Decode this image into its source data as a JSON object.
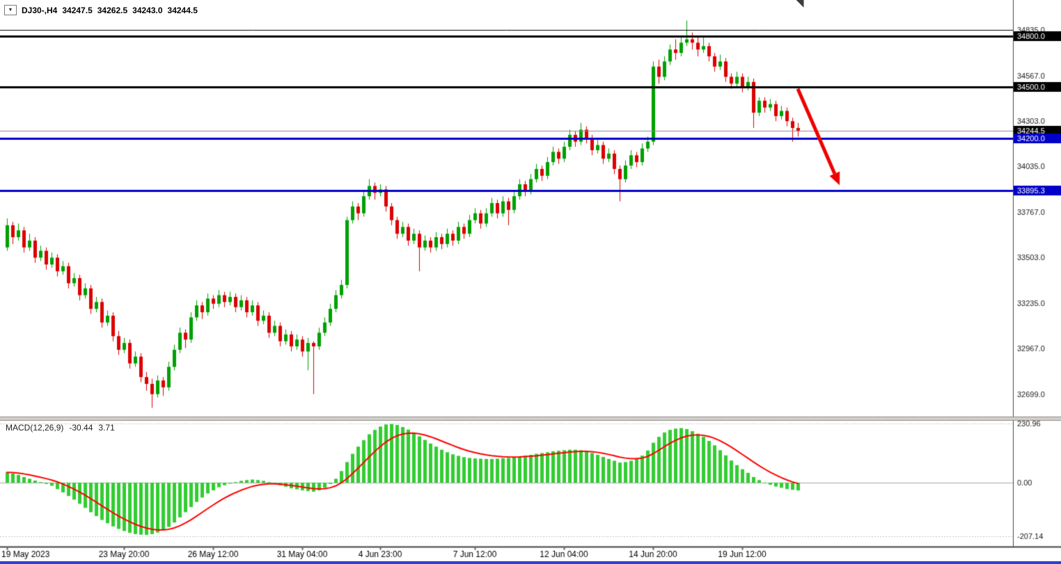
{
  "header": {
    "symbol_period": "DJ30-,H4",
    "open": "34247.5",
    "high": "34262.5",
    "low": "34243.0",
    "close": "34244.5"
  },
  "icons": {
    "symbol_dropdown_icon": "▼",
    "autoscroll_corner_icon": "◥"
  },
  "colors": {
    "bull": "#00A000",
    "bear": "#DC0000",
    "macd_hist": "#32CD32",
    "macd_signal": "#FF0000",
    "level_blue": "#0000C8",
    "level_black": "#000000",
    "current_line": "#8C8C8C",
    "axis_text": "#1A1A1A",
    "axis_border": "#444444",
    "separator": "#D4D0C8",
    "arrow": "#EE0000",
    "window_bottom": "#2B43CF",
    "badge_text": "#FFFFFF"
  },
  "chart_data": {
    "type": "candlestick",
    "symbol": "DJ30-",
    "timeframe": "H4",
    "title": "DJ30-,H4",
    "price_axis_range": [
      32607,
      35010
    ],
    "candles": [
      [
        33560,
        33730,
        33540,
        33690
      ],
      [
        33690,
        33710,
        33580,
        33620
      ],
      [
        33620,
        33700,
        33600,
        33660
      ],
      [
        33660,
        33680,
        33530,
        33560
      ],
      [
        33560,
        33640,
        33540,
        33600
      ],
      [
        33600,
        33620,
        33470,
        33500
      ],
      [
        33500,
        33570,
        33480,
        33540
      ],
      [
        33540,
        33560,
        33430,
        33460
      ],
      [
        33460,
        33530,
        33440,
        33500
      ],
      [
        33500,
        33520,
        33390,
        33420
      ],
      [
        33420,
        33480,
        33400,
        33450
      ],
      [
        33450,
        33470,
        33320,
        33350
      ],
      [
        33350,
        33410,
        33330,
        33380
      ],
      [
        33380,
        33400,
        33250,
        33280
      ],
      [
        33280,
        33350,
        33260,
        33320
      ],
      [
        33320,
        33340,
        33170,
        33200
      ],
      [
        33200,
        33270,
        33180,
        33240
      ],
      [
        33240,
        33260,
        33090,
        33120
      ],
      [
        33120,
        33190,
        33100,
        33160
      ],
      [
        33160,
        33180,
        33010,
        33040
      ],
      [
        33040,
        33070,
        32930,
        32960
      ],
      [
        32960,
        33030,
        32940,
        33000
      ],
      [
        33000,
        33020,
        32850,
        32880
      ],
      [
        32880,
        32950,
        32860,
        32920
      ],
      [
        32920,
        32940,
        32770,
        32800
      ],
      [
        32800,
        32830,
        32720,
        32760
      ],
      [
        32760,
        32790,
        32620,
        32700
      ],
      [
        32700,
        32810,
        32680,
        32780
      ],
      [
        32780,
        32800,
        32690,
        32740
      ],
      [
        32740,
        32890,
        32720,
        32860
      ],
      [
        32860,
        32990,
        32840,
        32960
      ],
      [
        32960,
        33090,
        32940,
        33060
      ],
      [
        33060,
        33080,
        32970,
        33020
      ],
      [
        33020,
        33180,
        33000,
        33150
      ],
      [
        33150,
        33250,
        33130,
        33220
      ],
      [
        33220,
        33240,
        33140,
        33180
      ],
      [
        33180,
        33290,
        33160,
        33260
      ],
      [
        33260,
        33280,
        33200,
        33230
      ],
      [
        33230,
        33310,
        33210,
        33280
      ],
      [
        33280,
        33300,
        33210,
        33240
      ],
      [
        33240,
        33300,
        33220,
        33270
      ],
      [
        33270,
        33290,
        33180,
        33210
      ],
      [
        33210,
        33280,
        33190,
        33250
      ],
      [
        33250,
        33270,
        33150,
        33180
      ],
      [
        33180,
        33250,
        33160,
        33220
      ],
      [
        33220,
        33240,
        33100,
        33130
      ],
      [
        33130,
        33190,
        33110,
        33160
      ],
      [
        33160,
        33180,
        33030,
        33060
      ],
      [
        33060,
        33130,
        33040,
        33100
      ],
      [
        33100,
        33120,
        32980,
        33010
      ],
      [
        33010,
        33080,
        32990,
        33050
      ],
      [
        33050,
        33070,
        32950,
        32980
      ],
      [
        32980,
        33050,
        32960,
        33020
      ],
      [
        33020,
        33040,
        32920,
        32950
      ],
      [
        32950,
        33030,
        32840,
        33000
      ],
      [
        33000,
        33010,
        32700,
        32980
      ],
      [
        32980,
        33090,
        32960,
        33060
      ],
      [
        33060,
        33150,
        33040,
        33120
      ],
      [
        33120,
        33230,
        33100,
        33200
      ],
      [
        33200,
        33310,
        33180,
        33280
      ],
      [
        33280,
        33370,
        33260,
        33340
      ],
      [
        33340,
        33740,
        33320,
        33720
      ],
      [
        33720,
        33830,
        33700,
        33800
      ],
      [
        33800,
        33820,
        33720,
        33760
      ],
      [
        33760,
        33890,
        33740,
        33860
      ],
      [
        33860,
        33960,
        33840,
        33920
      ],
      [
        33920,
        33940,
        33840,
        33880
      ],
      [
        33880,
        33930,
        33860,
        33900
      ],
      [
        33900,
        33920,
        33770,
        33800
      ],
      [
        33800,
        33820,
        33690,
        33720
      ],
      [
        33720,
        33740,
        33610,
        33640
      ],
      [
        33640,
        33710,
        33620,
        33680
      ],
      [
        33680,
        33700,
        33570,
        33600
      ],
      [
        33600,
        33670,
        33580,
        33640
      ],
      [
        33640,
        33660,
        33420,
        33560
      ],
      [
        33560,
        33630,
        33540,
        33600
      ],
      [
        33600,
        33620,
        33530,
        33560
      ],
      [
        33560,
        33650,
        33540,
        33620
      ],
      [
        33620,
        33640,
        33550,
        33580
      ],
      [
        33580,
        33670,
        33560,
        33640
      ],
      [
        33640,
        33660,
        33570,
        33600
      ],
      [
        33600,
        33710,
        33580,
        33680
      ],
      [
        33680,
        33700,
        33610,
        33640
      ],
      [
        33640,
        33750,
        33620,
        33720
      ],
      [
        33720,
        33790,
        33700,
        33760
      ],
      [
        33760,
        33780,
        33670,
        33700
      ],
      [
        33700,
        33790,
        33680,
        33760
      ],
      [
        33760,
        33850,
        33740,
        33820
      ],
      [
        33820,
        33840,
        33730,
        33760
      ],
      [
        33760,
        33860,
        33740,
        33830
      ],
      [
        33830,
        33850,
        33690,
        33780
      ],
      [
        33780,
        33890,
        33760,
        33860
      ],
      [
        33860,
        33960,
        33840,
        33930
      ],
      [
        33930,
        33950,
        33860,
        33890
      ],
      [
        33890,
        33990,
        33870,
        33960
      ],
      [
        33960,
        34050,
        33940,
        34020
      ],
      [
        34020,
        34040,
        33950,
        33980
      ],
      [
        33980,
        34090,
        33960,
        34060
      ],
      [
        34060,
        34150,
        34040,
        34120
      ],
      [
        34120,
        34140,
        34050,
        34080
      ],
      [
        34080,
        34180,
        34060,
        34150
      ],
      [
        34150,
        34250,
        34130,
        34220
      ],
      [
        34220,
        34240,
        34150,
        34180
      ],
      [
        34180,
        34290,
        34160,
        34250
      ],
      [
        34250,
        34270,
        34170,
        34200
      ],
      [
        34200,
        34220,
        34100,
        34130
      ],
      [
        34130,
        34190,
        34110,
        34160
      ],
      [
        34160,
        34180,
        34050,
        34080
      ],
      [
        34080,
        34140,
        34060,
        34110
      ],
      [
        34110,
        34130,
        33990,
        34020
      ],
      [
        34020,
        34040,
        33830,
        33960
      ],
      [
        33960,
        34070,
        33940,
        34040
      ],
      [
        34040,
        34130,
        34020,
        34100
      ],
      [
        34100,
        34120,
        34030,
        34060
      ],
      [
        34060,
        34170,
        34040,
        34140
      ],
      [
        34140,
        34210,
        34120,
        34180
      ],
      [
        34180,
        34650,
        34160,
        34620
      ],
      [
        34620,
        34660,
        34520,
        34560
      ],
      [
        34560,
        34680,
        34540,
        34650
      ],
      [
        34650,
        34750,
        34630,
        34720
      ],
      [
        34720,
        34780,
        34660,
        34700
      ],
      [
        34700,
        34800,
        34680,
        34760
      ],
      [
        34760,
        34890,
        34740,
        34780
      ],
      [
        34780,
        34820,
        34720,
        34760
      ],
      [
        34760,
        34800,
        34680,
        34720
      ],
      [
        34720,
        34790,
        34700,
        34740
      ],
      [
        34740,
        34760,
        34650,
        34680
      ],
      [
        34680,
        34700,
        34590,
        34620
      ],
      [
        34620,
        34690,
        34600,
        34650
      ],
      [
        34650,
        34670,
        34530,
        34560
      ],
      [
        34560,
        34580,
        34490,
        34520
      ],
      [
        34520,
        34590,
        34500,
        34560
      ],
      [
        34560,
        34580,
        34470,
        34500
      ],
      [
        34500,
        34560,
        34480,
        34530
      ],
      [
        34530,
        34550,
        34260,
        34350
      ],
      [
        34350,
        34440,
        34330,
        34420
      ],
      [
        34420,
        34440,
        34350,
        34380
      ],
      [
        34380,
        34430,
        34360,
        34400
      ],
      [
        34400,
        34420,
        34300,
        34330
      ],
      [
        34330,
        34390,
        34310,
        34360
      ],
      [
        34360,
        34380,
        34270,
        34300
      ],
      [
        34300,
        34320,
        34180,
        34260
      ],
      [
        34260,
        34290,
        34210,
        34244.5
      ]
    ],
    "price_ticks": [
      {
        "v": 34835.0,
        "label": "34835.0"
      },
      {
        "v": 34567.0,
        "label": "34567.0"
      },
      {
        "v": 34303.0,
        "label": "34303.0"
      },
      {
        "v": 34035.0,
        "label": "34035.0"
      },
      {
        "v": 33767.0,
        "label": "33767.0"
      },
      {
        "v": 33503.0,
        "label": "33503.0"
      },
      {
        "v": 33235.0,
        "label": "33235.0"
      },
      {
        "v": 32967.0,
        "label": "32967.0"
      },
      {
        "v": 32699.0,
        "label": "32699.0"
      }
    ],
    "hlines": [
      {
        "price": 34835.0,
        "label": "34835.0",
        "color": "#000000",
        "width": 1,
        "badge": false
      },
      {
        "price": 34800.0,
        "label": "34800.0",
        "color": "#000000",
        "width": 3,
        "badge": true
      },
      {
        "price": 34500.0,
        "label": "34500.0",
        "color": "#000000",
        "width": 3,
        "badge": true
      },
      {
        "price": 34200.0,
        "label": "34200.0",
        "color": "#0000C8",
        "width": 3,
        "badge": true
      },
      {
        "price": 33895.3,
        "label": "33895.3",
        "color": "#0000C8",
        "width": 3,
        "badge": true
      }
    ],
    "current_price": {
      "price": 34244.5,
      "label": "34244.5"
    },
    "trend_arrow": {
      "from_bar": 142,
      "from_price": 34490,
      "to_bar": 149.5,
      "to_price": 33925
    },
    "time_labels": [
      {
        "i": 0,
        "label": "19 May 2023"
      },
      {
        "i": 21,
        "label": "23 May 20:00"
      },
      {
        "i": 37,
        "label": "26 May 12:00"
      },
      {
        "i": 53,
        "label": "31 May 04:00"
      },
      {
        "i": 67,
        "label": "4 Jun 23:00"
      },
      {
        "i": 84,
        "label": "7 Jun 12:00"
      },
      {
        "i": 100,
        "label": "12 Jun 04:00"
      },
      {
        "i": 116,
        "label": "14 Jun 20:00"
      },
      {
        "i": 132,
        "label": "19 Jun 12:00"
      }
    ],
    "macd": {
      "label": "MACD(12,26,9)",
      "main_value": "-30.44",
      "signal_value": "3.71",
      "axis_ticks": [
        {
          "v": 230.96,
          "label": "230.96"
        },
        {
          "v": 0,
          "label": "0.00"
        },
        {
          "v": -207.14,
          "label": "-207.14"
        }
      ],
      "y_range": [
        -242,
        250
      ],
      "values": [
        40,
        35,
        30,
        22,
        15,
        8,
        2,
        -5,
        -12,
        -25,
        -38,
        -52,
        -66,
        -82,
        -98,
        -115,
        -130,
        -145,
        -158,
        -170,
        -180,
        -188,
        -195,
        -200,
        -202,
        -203,
        -200,
        -194,
        -185,
        -172,
        -155,
        -135,
        -115,
        -95,
        -75,
        -58,
        -42,
        -30,
        -18,
        -10,
        -4,
        2,
        7,
        10,
        12,
        10,
        7,
        2,
        -4,
        -10,
        -16,
        -22,
        -26,
        -30,
        -33,
        -35,
        -30,
        -20,
        -5,
        15,
        45,
        80,
        112,
        140,
        165,
        188,
        205,
        218,
        226,
        228,
        224,
        216,
        206,
        194,
        180,
        166,
        152,
        140,
        128,
        118,
        110,
        104,
        99,
        96,
        94,
        93,
        92,
        92,
        93,
        95,
        96,
        98,
        102,
        105,
        108,
        112,
        115,
        118,
        122,
        124,
        126,
        128,
        128,
        126,
        122,
        115,
        108,
        100,
        92,
        85,
        78,
        80,
        85,
        92,
        105,
        125,
        155,
        178,
        195,
        205,
        210,
        212,
        208,
        200,
        190,
        178,
        162,
        145,
        126,
        106,
        86,
        68,
        52,
        38,
        22,
        10,
        0,
        -8,
        -15,
        -20,
        -25,
        -28,
        -30.44
      ]
    }
  }
}
